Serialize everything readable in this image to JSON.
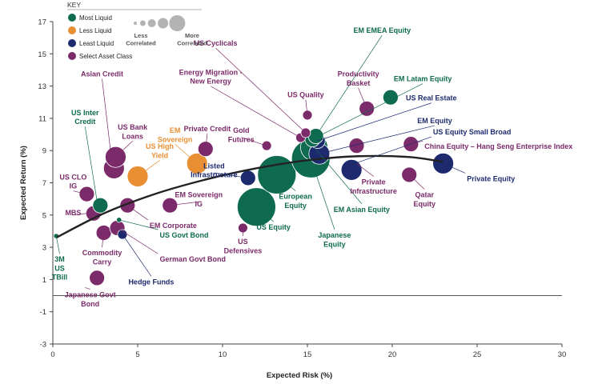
{
  "chart_data": {
    "type": "scatter",
    "xlabel": "Expected Risk (%)",
    "ylabel": "Expected Return (%)",
    "xlim": [
      0,
      30
    ],
    "ylim": [
      -3,
      17
    ],
    "xticks": [
      "0",
      "5",
      "10",
      "15",
      "20",
      "25",
      "30"
    ],
    "yticks": [
      "-3",
      "-1",
      "1",
      "3",
      "5",
      "7",
      "9",
      "11",
      "13",
      "15",
      "17"
    ],
    "colors": {
      "most": "#0e6b4f",
      "less": "#e98f33",
      "least": "#1d2b6e",
      "select": "#7b2a6a",
      "axis": "#444444",
      "curve": "#222222",
      "legend_grey": "#b3b3b3"
    },
    "legend": {
      "title": "KEY",
      "items": [
        {
          "label": "Most Liquid",
          "category": "most"
        },
        {
          "label": "Less Liquid",
          "category": "less"
        },
        {
          "label": "Least Liquid",
          "category": "least"
        },
        {
          "label": "Select Asset Class",
          "category": "select"
        }
      ],
      "size_low": "Less\nCorrelated",
      "size_high": "More\nCorrelated",
      "size_samples": [
        1,
        2,
        3,
        4,
        6
      ]
    },
    "frontier": [
      [
        0.2,
        3.6
      ],
      [
        3,
        5.1
      ],
      [
        6,
        6.3
      ],
      [
        9,
        7.2
      ],
      [
        12,
        7.9
      ],
      [
        15,
        8.4
      ],
      [
        18,
        8.65
      ],
      [
        21,
        8.6
      ],
      [
        23,
        8.3
      ]
    ],
    "points": [
      {
        "name": "3M US TBill",
        "label": "3M\nUS\nTBill",
        "x": 0.2,
        "y": 3.7,
        "cat": "most",
        "size": 1,
        "lx": 0.4,
        "ly": 2.1,
        "anchor": "middle"
      },
      {
        "name": "Japanese Govt Bond",
        "label": "Japanese Govt\nBond",
        "x": 2.6,
        "y": 1.1,
        "cat": "select",
        "size": 3,
        "lx": 2.2,
        "ly": -0.1,
        "anchor": "middle",
        "cx": 1.9,
        "cy": 0.5
      },
      {
        "name": "MBS",
        "label": "MBS",
        "x": 2.4,
        "y": 5.1,
        "cat": "select",
        "size": 3,
        "lx": 1.2,
        "ly": 5.0,
        "anchor": "middle",
        "cx": 2.0,
        "cy": 5.1
      },
      {
        "name": "US CLO IG",
        "label": "US CLO\nIG",
        "x": 2.0,
        "y": 6.3,
        "cat": "select",
        "size": 3,
        "lx": 1.2,
        "ly": 7.2,
        "anchor": "middle"
      },
      {
        "name": "US Inter Credit",
        "label": "US Inter\nCredit",
        "x": 2.8,
        "y": 5.6,
        "cat": "most",
        "size": 3,
        "lx": 1.9,
        "ly": 11.2,
        "anchor": "middle",
        "cx": 2.6,
        "cy": 5.9
      },
      {
        "name": "Commodity Carry",
        "label": "Commodity\nCarry",
        "x": 3.0,
        "y": 3.9,
        "cat": "select",
        "size": 3,
        "lx": 2.9,
        "ly": 2.5,
        "anchor": "middle"
      },
      {
        "name": "Asian Credit",
        "label": "Asian Credit",
        "x": 3.6,
        "y": 7.9,
        "cat": "select",
        "size": 4,
        "lx": 2.9,
        "ly": 13.6,
        "anchor": "middle",
        "cx": 3.5,
        "cy": 8.1
      },
      {
        "name": "US Bank Loans",
        "label": "US Bank\nLoans",
        "x": 3.7,
        "y": 8.6,
        "cat": "select",
        "size": 4,
        "lx": 4.7,
        "ly": 10.3,
        "anchor": "middle"
      },
      {
        "name": "Hedge Funds",
        "label": "Hedge Funds",
        "x": 4.1,
        "y": 3.8,
        "cat": "least",
        "size": 2,
        "lx": 5.8,
        "ly": 0.7,
        "anchor": "middle"
      },
      {
        "name": "German Govt Bond",
        "label": "German Govt Bond",
        "x": 3.8,
        "y": 4.2,
        "cat": "select",
        "size": 3,
        "lx": 6.3,
        "ly": 2.1,
        "anchor": "start"
      },
      {
        "name": "US Govt Bond",
        "label": "US Govt Bond",
        "x": 3.9,
        "y": 4.7,
        "cat": "most",
        "size": 1,
        "lx": 6.3,
        "ly": 3.6,
        "anchor": "start"
      },
      {
        "name": "EM Corporate",
        "label": "EM Corporate",
        "x": 4.4,
        "y": 5.6,
        "cat": "select",
        "size": 3,
        "lx": 5.7,
        "ly": 4.2,
        "anchor": "start"
      },
      {
        "name": "US High Yield",
        "label": "US High\nYield",
        "x": 5.0,
        "y": 7.4,
        "cat": "less",
        "size": 4,
        "lx": 6.3,
        "ly": 9.1,
        "anchor": "middle"
      },
      {
        "name": "EM Sovereign",
        "label": "EM\nSovereign",
        "x": 8.5,
        "y": 8.2,
        "cat": "less",
        "size": 4,
        "lx": 7.2,
        "ly": 10.1,
        "anchor": "middle"
      },
      {
        "name": "Private Credit",
        "label": "Private Credit",
        "x": 9.0,
        "y": 9.1,
        "cat": "select",
        "size": 3,
        "lx": 9.1,
        "ly": 10.2,
        "anchor": "middle"
      },
      {
        "name": "EM Sovereign IG",
        "label": "EM Sovereign\nIG",
        "x": 6.9,
        "y": 5.6,
        "cat": "select",
        "size": 3,
        "lx": 8.6,
        "ly": 6.1,
        "anchor": "middle"
      },
      {
        "name": "Listed Infrastructure",
        "label": "Listed\nInfrastructure",
        "x": 11.5,
        "y": 7.3,
        "cat": "least",
        "size": 3,
        "lx": 9.5,
        "ly": 7.9,
        "anchor": "middle"
      },
      {
        "name": "US Defensives",
        "label": "US\nDefensives",
        "x": 11.2,
        "y": 4.2,
        "cat": "select",
        "size": 2,
        "lx": 11.2,
        "ly": 3.2,
        "anchor": "middle"
      },
      {
        "name": "US Equity",
        "label": "US Equity",
        "x": 12.0,
        "y": 5.5,
        "cat": "most",
        "size": 6,
        "lx": 13.0,
        "ly": 4.1,
        "anchor": "middle"
      },
      {
        "name": "Gold Futures",
        "label": "Gold\nFutures",
        "x": 12.6,
        "y": 9.3,
        "cat": "select",
        "size": 2,
        "lx": 11.1,
        "ly": 10.1,
        "anchor": "middle"
      },
      {
        "name": "European Equity",
        "label": "European\nEquity",
        "x": 13.2,
        "y": 7.5,
        "cat": "most",
        "size": 6,
        "lx": 14.3,
        "ly": 6.0,
        "anchor": "middle"
      },
      {
        "name": "Energy Migration - New Energy",
        "label": "Energy Migration -\nNew Energy",
        "x": 14.6,
        "y": 9.8,
        "cat": "select",
        "size": 2,
        "lx": 9.3,
        "ly": 13.7,
        "anchor": "middle"
      },
      {
        "name": "US Cyclicals",
        "label": "US Cyclicals",
        "x": 14.9,
        "y": 10.1,
        "cat": "select",
        "size": 2,
        "lx": 9.6,
        "ly": 15.5,
        "anchor": "middle"
      },
      {
        "name": "US Quality",
        "label": "US Quality",
        "x": 15.0,
        "y": 11.2,
        "cat": "select",
        "size": 2,
        "lx": 14.9,
        "ly": 12.3,
        "anchor": "middle"
      },
      {
        "name": "Japanese Equity",
        "label": "Japanese\nEquity",
        "x": 15.2,
        "y": 8.5,
        "cat": "most",
        "size": 6,
        "lx": 16.6,
        "ly": 3.6,
        "anchor": "middle"
      },
      {
        "name": "EM Asian Equity",
        "label": "EM Asian Equity",
        "x": 15.4,
        "y": 9.2,
        "cat": "most",
        "size": 5,
        "lx": 18.2,
        "ly": 5.2,
        "anchor": "middle"
      },
      {
        "name": "US Real Estate",
        "label": "US Real Estate",
        "x": 15.6,
        "y": 9.6,
        "cat": "least",
        "size": 3,
        "lx": 22.3,
        "ly": 12.1,
        "anchor": "middle"
      },
      {
        "name": "EM Latam Equity",
        "label": "EM Latam Equity",
        "x": 15.3,
        "y": 9.7,
        "cat": "most",
        "size": 3,
        "lx": 21.8,
        "ly": 13.3,
        "anchor": "middle"
      },
      {
        "name": "EM EMEA Equity",
        "label": "EM EMEA Equity",
        "x": 15.5,
        "y": 9.9,
        "cat": "most",
        "size": 3,
        "lx": 19.4,
        "ly": 16.3,
        "anchor": "middle"
      },
      {
        "name": "EM Equity",
        "label": "EM Equity",
        "x": 15.7,
        "y": 8.8,
        "cat": "least",
        "size": 4,
        "lx": 22.5,
        "ly": 10.7,
        "anchor": "middle"
      },
      {
        "name": "US Equity Small Broad",
        "label": "US Equity Small Broad",
        "x": 17.6,
        "y": 7.8,
        "cat": "least",
        "size": 4,
        "lx": 22.4,
        "ly": 10.0,
        "anchor": "start",
        "cx": 17.8,
        "cy": 8.2
      },
      {
        "name": "Private Infrastructure",
        "label": "Private\nInfrastructure",
        "x": 17.9,
        "y": 9.3,
        "cat": "select",
        "size": 3,
        "lx": 18.9,
        "ly": 6.9,
        "anchor": "middle",
        "cx": 17.9,
        "cy": 8.2
      },
      {
        "name": "Productivity Basket",
        "label": "Productivity\nBasket",
        "x": 18.5,
        "y": 11.6,
        "cat": "select",
        "size": 3,
        "lx": 18.0,
        "ly": 13.6,
        "anchor": "middle"
      },
      {
        "name": "EM Latam Equity dot",
        "label": "",
        "x": 19.9,
        "y": 12.3,
        "cat": "most",
        "size": 3
      },
      {
        "name": "China Equity – Hang Seng Enterprise Index",
        "label": "China Equity – Hang Seng Enterprise Index",
        "x": 21.1,
        "y": 9.4,
        "cat": "select",
        "size": 3,
        "lx": 21.9,
        "ly": 9.1,
        "anchor": "start"
      },
      {
        "name": "Qatar Equity",
        "label": "Qatar\nEquity",
        "x": 21.0,
        "y": 7.5,
        "cat": "select",
        "size": 3,
        "lx": 21.9,
        "ly": 6.1,
        "anchor": "middle"
      },
      {
        "name": "Private Equity",
        "label": "Private Equity",
        "x": 23.0,
        "y": 8.2,
        "cat": "least",
        "size": 4,
        "lx": 24.4,
        "ly": 7.1,
        "anchor": "start"
      }
    ]
  }
}
